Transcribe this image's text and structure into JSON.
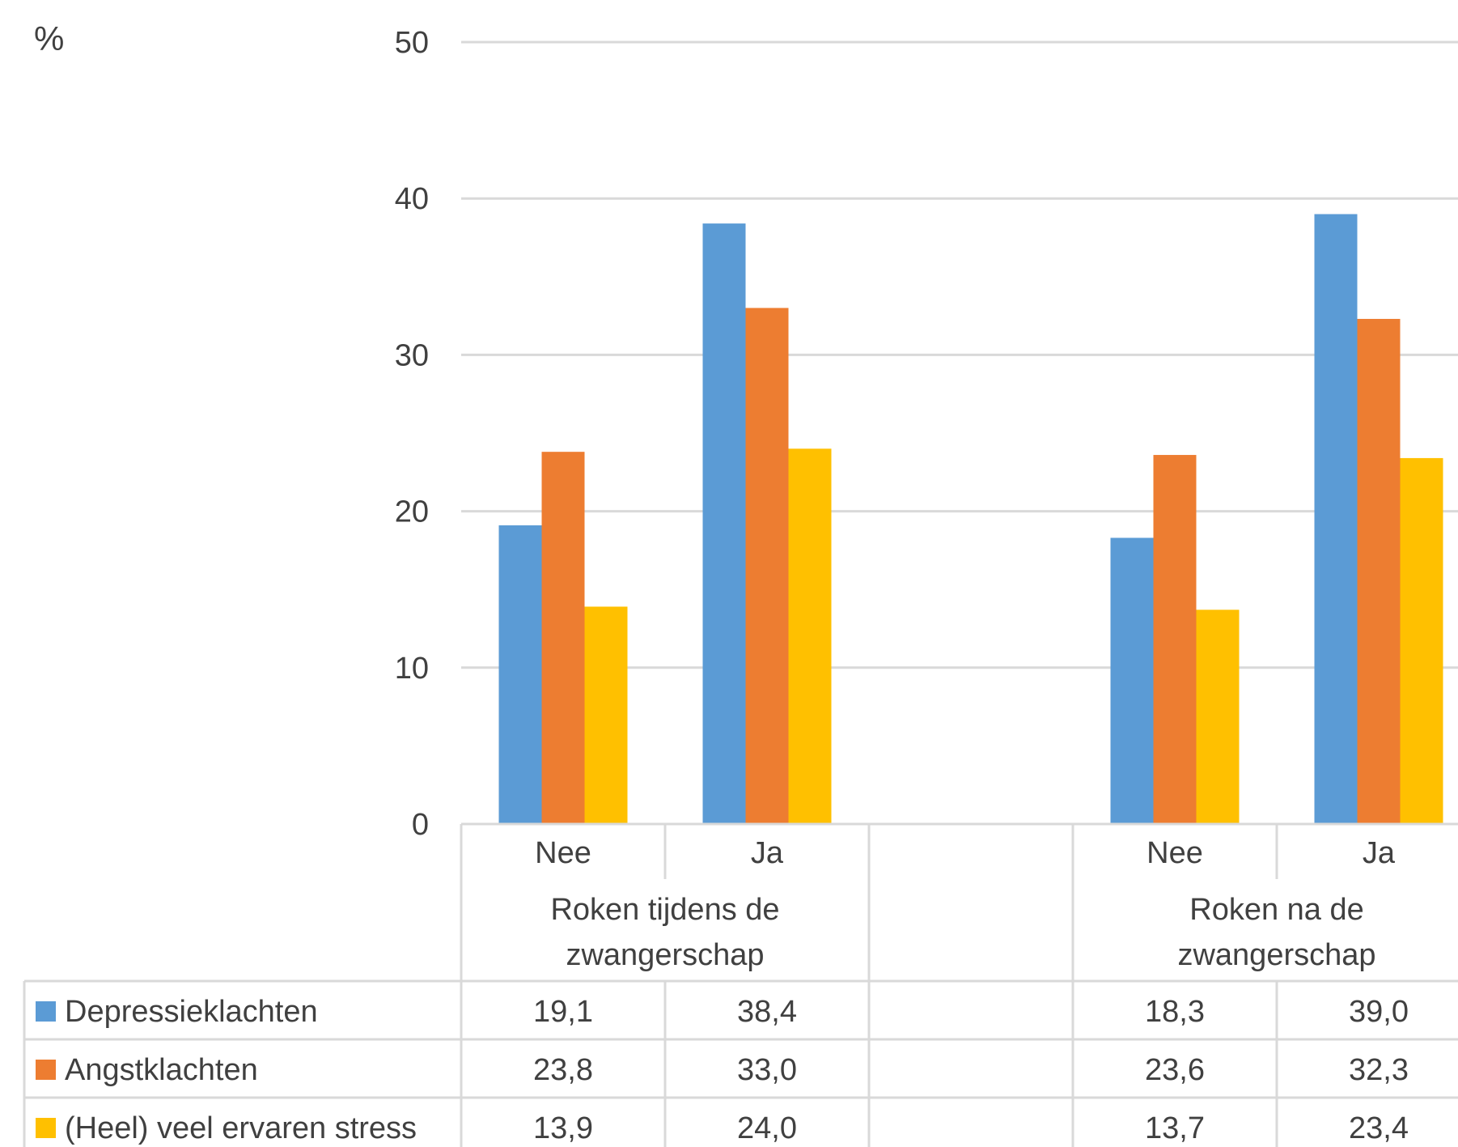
{
  "chart_data": {
    "type": "bar",
    "y_unit_label": "%",
    "ylim": [
      0,
      50
    ],
    "yticks": [
      "0",
      "10",
      "20",
      "30",
      "40",
      "50"
    ],
    "grid": true,
    "groups": [
      {
        "label": "Roken tijdens de zwangerschap",
        "label_lines": [
          "Roken tijdens de",
          "zwangerschap"
        ],
        "categories": [
          "Nee",
          "Ja"
        ]
      },
      {
        "label": "Roken na de zwangerschap",
        "label_lines": [
          "Roken na de",
          "zwangerschap"
        ],
        "categories": [
          "Nee",
          "Ja"
        ]
      }
    ],
    "series": [
      {
        "name": "Depressieklachten",
        "color": "#5b9bd5",
        "values": [
          19.1,
          38.4,
          18.3,
          39.0
        ],
        "labels": [
          "19,1",
          "38,4",
          "18,3",
          "39,0"
        ]
      },
      {
        "name": "Angstklachten",
        "color": "#ed7d31",
        "values": [
          23.8,
          33.0,
          23.6,
          32.3
        ],
        "labels": [
          "23,8",
          "33,0",
          "23,6",
          "32,3"
        ]
      },
      {
        "name": "(Heel) veel ervaren stress",
        "color": "#ffc000",
        "values": [
          13.9,
          24.0,
          13.7,
          23.4
        ],
        "labels": [
          "13,9",
          "24,0",
          "13,7",
          "23,4"
        ]
      }
    ],
    "legend_position": "data-table"
  }
}
